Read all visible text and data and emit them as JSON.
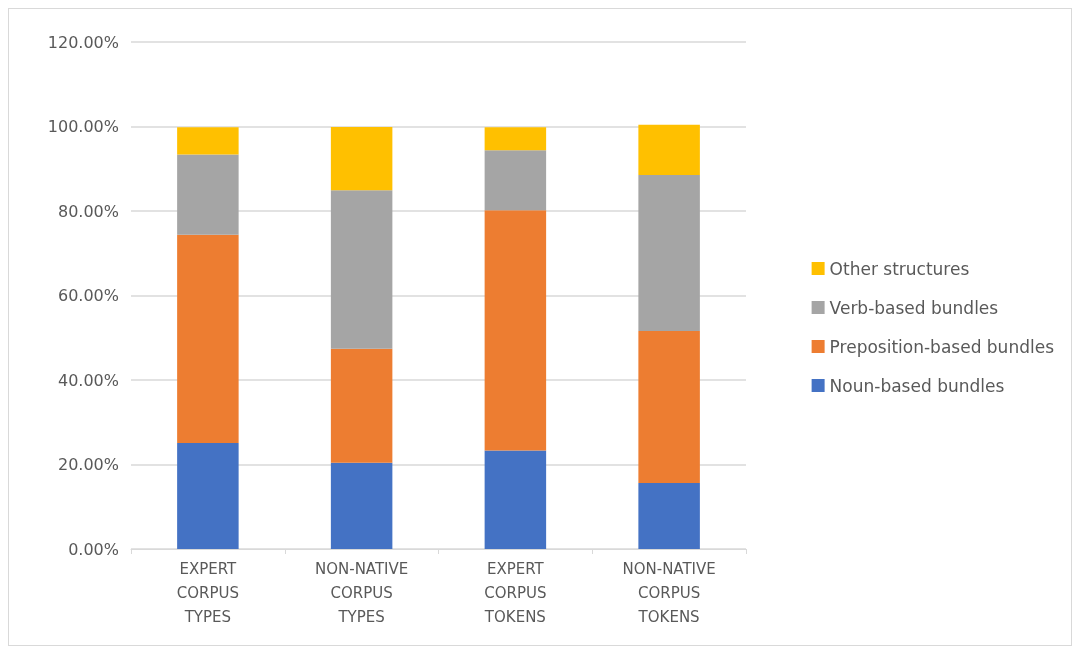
{
  "chart_data": {
    "type": "bar",
    "stacked": true,
    "categories": [
      "EXPERT CORPUS TYPES",
      "NON-NATIVE CORPUS TYPES",
      "EXPERT CORPUS TOKENS",
      "NON-NATIVE CORPUS TOKENS"
    ],
    "series": [
      {
        "name": "Noun-based bundles",
        "color": "#4472c4",
        "values": [
          25.1,
          20.4,
          23.3,
          15.6
        ]
      },
      {
        "name": "Preposition-based bundles",
        "color": "#ed7d31",
        "values": [
          49.3,
          27.0,
          56.9,
          36.0
        ]
      },
      {
        "name": "Verb-based bundles",
        "color": "#a5a5a5",
        "values": [
          19.0,
          37.5,
          14.2,
          36.9
        ]
      },
      {
        "name": "Other structures",
        "color": "#ffc000",
        "values": [
          6.4,
          15.0,
          5.4,
          11.9
        ]
      }
    ],
    "ylim": [
      0,
      120
    ],
    "yticks": [
      {
        "value": 0,
        "label": "0.00%"
      },
      {
        "value": 20,
        "label": "20.00%"
      },
      {
        "value": 40,
        "label": "40.00%"
      },
      {
        "value": 60,
        "label": "60.00%"
      },
      {
        "value": 80,
        "label": "80.00%"
      },
      {
        "value": 100,
        "label": "100.00%"
      },
      {
        "value": 120,
        "label": "120.00%"
      }
    ],
    "grid": "y",
    "legend": "right"
  }
}
